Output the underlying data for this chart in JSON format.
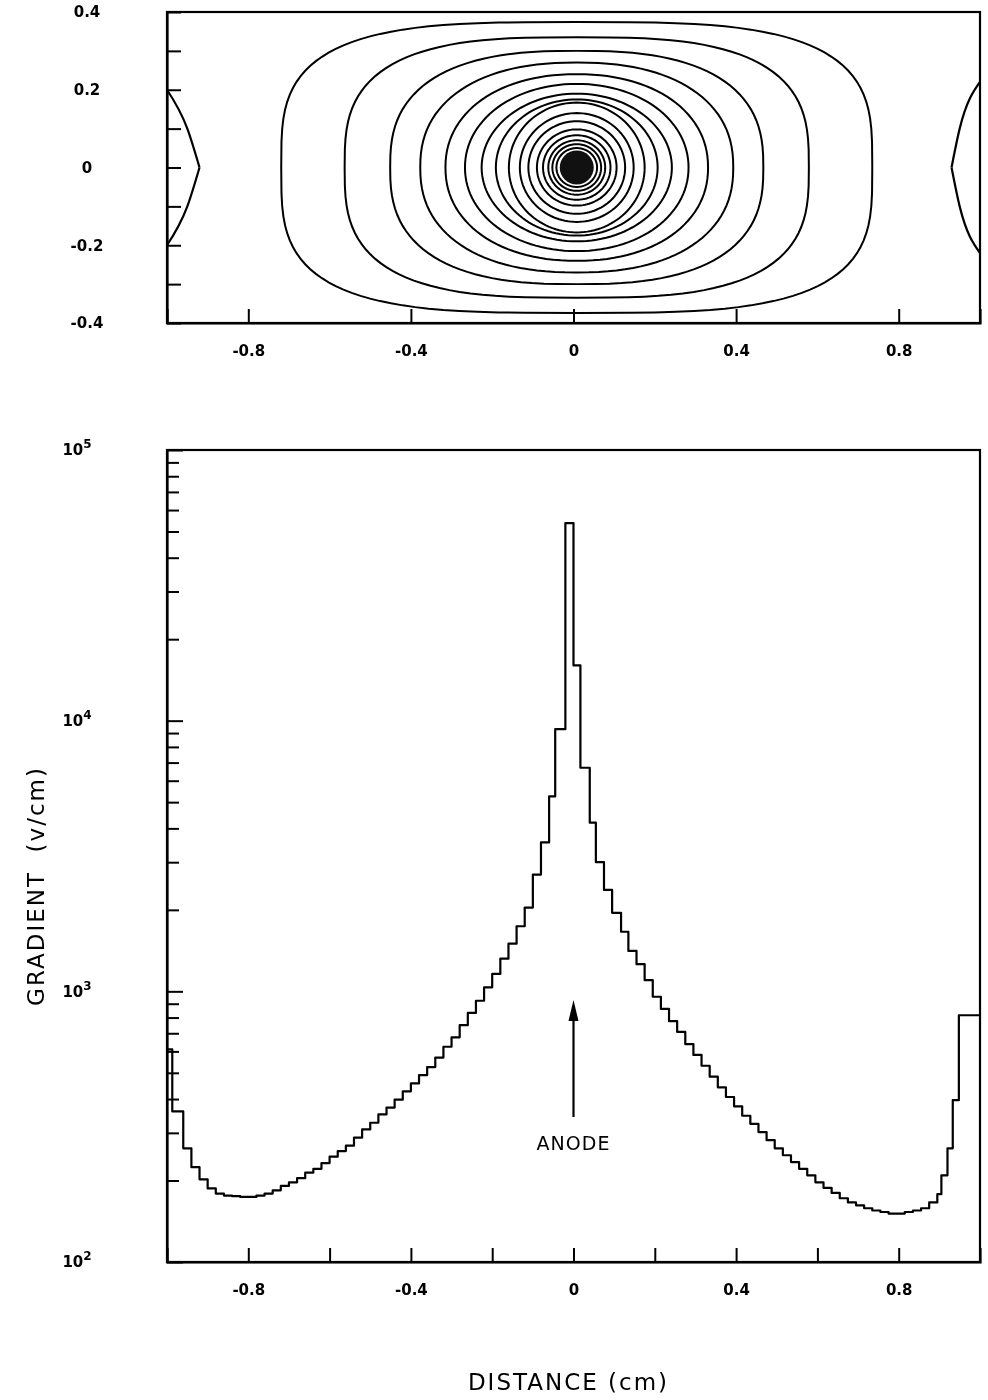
{
  "chart_data": [
    {
      "type": "line",
      "xlim": [
        -1.0,
        1.0
      ],
      "ylim": [
        -0.4,
        0.4
      ],
      "series": [
        {
          "color": "#000000",
          "x": [
            -1.0,
            -0.95,
            -0.92
          ],
          "values": [
            0.2,
            0.1,
            0
          ]
        },
        {
          "color": "#000000",
          "x": [
            -1.0,
            -0.95,
            -0.92
          ],
          "values": [
            -0.2,
            -0.1,
            0
          ]
        },
        {
          "color": "#000000",
          "x": [
            0.93,
            0.95,
            1.0
          ],
          "values": [
            0,
            0.1,
            0.22
          ]
        },
        {
          "color": "#000000",
          "x": [
            0.93,
            0.95,
            1.0
          ],
          "values": [
            0,
            -0.1,
            -0.22
          ]
        }
      ],
      "xticks": [
        -0.8,
        -0.4,
        0,
        0.4,
        0.8
      ],
      "yticks": [
        -0.4,
        {
          "value": -0.3,
          "label": null
        },
        -0.2,
        {
          "value": -0.1,
          "label": null
        },
        0,
        {
          "value": 0.1,
          "label": null
        },
        0.2,
        {
          "value": 0.3,
          "label": null
        },
        0.4
      ]
    },
    {
      "type": "step",
      "log": true,
      "xlabel": "DISTANCE (cm)",
      "ylabel": "GRADIENT  (v/cm)",
      "xlim": [
        -1.0,
        1.0
      ],
      "ylim": [
        100,
        100000
      ],
      "xticks": [
        -0.8,
        {
          "value": -0.6,
          "label": null
        },
        -0.4,
        {
          "value": -0.2,
          "label": null
        },
        0,
        {
          "value": 0.2,
          "label": null
        },
        0.4,
        {
          "value": 0.6,
          "label": null
        },
        0.8
      ],
      "yticks": [
        {
          "value": 100,
          "label": "10$^{2}$"
        },
        {
          "value": 200,
          "label": null
        },
        {
          "value": 300,
          "label": null
        },
        {
          "value": 400,
          "label": null
        },
        {
          "value": 500,
          "label": null
        },
        {
          "value": 600,
          "label": null
        },
        {
          "value": 700,
          "label": null
        },
        {
          "value": 800,
          "label": null
        },
        {
          "value": 900,
          "label": null
        },
        {
          "value": 1000,
          "label": "10$^{3}$"
        },
        {
          "value": 2000,
          "label": null
        },
        {
          "value": 3000,
          "label": null
        },
        {
          "value": 4000,
          "label": null
        },
        {
          "value": 5000,
          "label": null
        },
        {
          "value": 6000,
          "label": null
        },
        {
          "value": 7000,
          "label": null
        },
        {
          "value": 8000,
          "label": null
        },
        {
          "value": 9000,
          "label": null
        },
        {
          "value": 10000,
          "label": "10$^{4}$"
        },
        {
          "value": 20000,
          "label": null
        },
        {
          "value": 30000,
          "label": null
        },
        {
          "value": 40000,
          "label": null
        },
        {
          "value": 50000,
          "label": null
        },
        {
          "value": 60000,
          "label": null
        },
        {
          "value": 70000,
          "label": null
        },
        {
          "value": 80000,
          "label": null
        },
        {
          "value": 90000,
          "label": null
        },
        {
          "value": 100000,
          "label": "10$^{5}$"
        }
      ],
      "annotations": [
        "ANODE"
      ],
      "series": [
        {
          "color": "#000000",
          "x": [
            -1.0,
            -0.987,
            -0.96,
            -0.94,
            -0.92,
            -0.9,
            -0.88,
            -0.86,
            -0.84,
            -0.82,
            -0.8,
            -0.78,
            -0.76,
            -0.74,
            -0.72,
            -0.7,
            -0.68,
            -0.66,
            -0.64,
            -0.62,
            -0.6,
            -0.58,
            -0.56,
            -0.54,
            -0.52,
            -0.5,
            -0.48,
            -0.46,
            -0.44,
            -0.42,
            -0.4,
            -0.38,
            -0.36,
            -0.34,
            -0.32,
            -0.3,
            -0.28,
            -0.26,
            -0.24,
            -0.22,
            -0.2,
            -0.18,
            -0.16,
            -0.14,
            -0.12,
            -0.1,
            -0.08,
            -0.06,
            -0.045,
            -0.02,
            0,
            0.017,
            0.04,
            0.055,
            0.075,
            0.095,
            0.117,
            0.135,
            0.155,
            0.175,
            0.195,
            0.215,
            0.235,
            0.255,
            0.275,
            0.295,
            0.315,
            0.335,
            0.355,
            0.375,
            0.395,
            0.415,
            0.435,
            0.455,
            0.475,
            0.495,
            0.515,
            0.535,
            0.555,
            0.575,
            0.595,
            0.615,
            0.635,
            0.655,
            0.675,
            0.695,
            0.715,
            0.735,
            0.755,
            0.775,
            0.795,
            0.815,
            0.835,
            0.855,
            0.875,
            0.895,
            0.905,
            0.92,
            0.933,
            0.948,
            1.0
          ],
          "values": [
            610,
            360,
            263,
            224,
            202,
            187,
            179,
            176,
            175,
            174,
            174,
            176,
            179,
            184,
            191,
            197,
            204,
            214,
            221,
            232,
            245,
            257,
            269,
            288,
            309,
            327,
            351,
            372,
            398,
            427,
            457,
            490,
            525,
            569,
            624,
            676,
            750,
            832,
            923,
            1035,
            1160,
            1320,
            1500,
            1740,
            2040,
            2700,
            3550,
            5250,
            9300,
            53700,
            16000,
            6700,
            4200,
            3000,
            2370,
            1950,
            1660,
            1410,
            1260,
            1100,
            955,
            861,
            776,
            708,
            638,
            582,
            531,
            484,
            442,
            407,
            376,
            347,
            324,
            302,
            282,
            263,
            248,
            234,
            221,
            209,
            197,
            188,
            180,
            172,
            166,
            162,
            158,
            155,
            153,
            151,
            151,
            153,
            155,
            158,
            166,
            178,
            209,
            263,
            396,
            816,
            816
          ]
        }
      ]
    }
  ]
}
